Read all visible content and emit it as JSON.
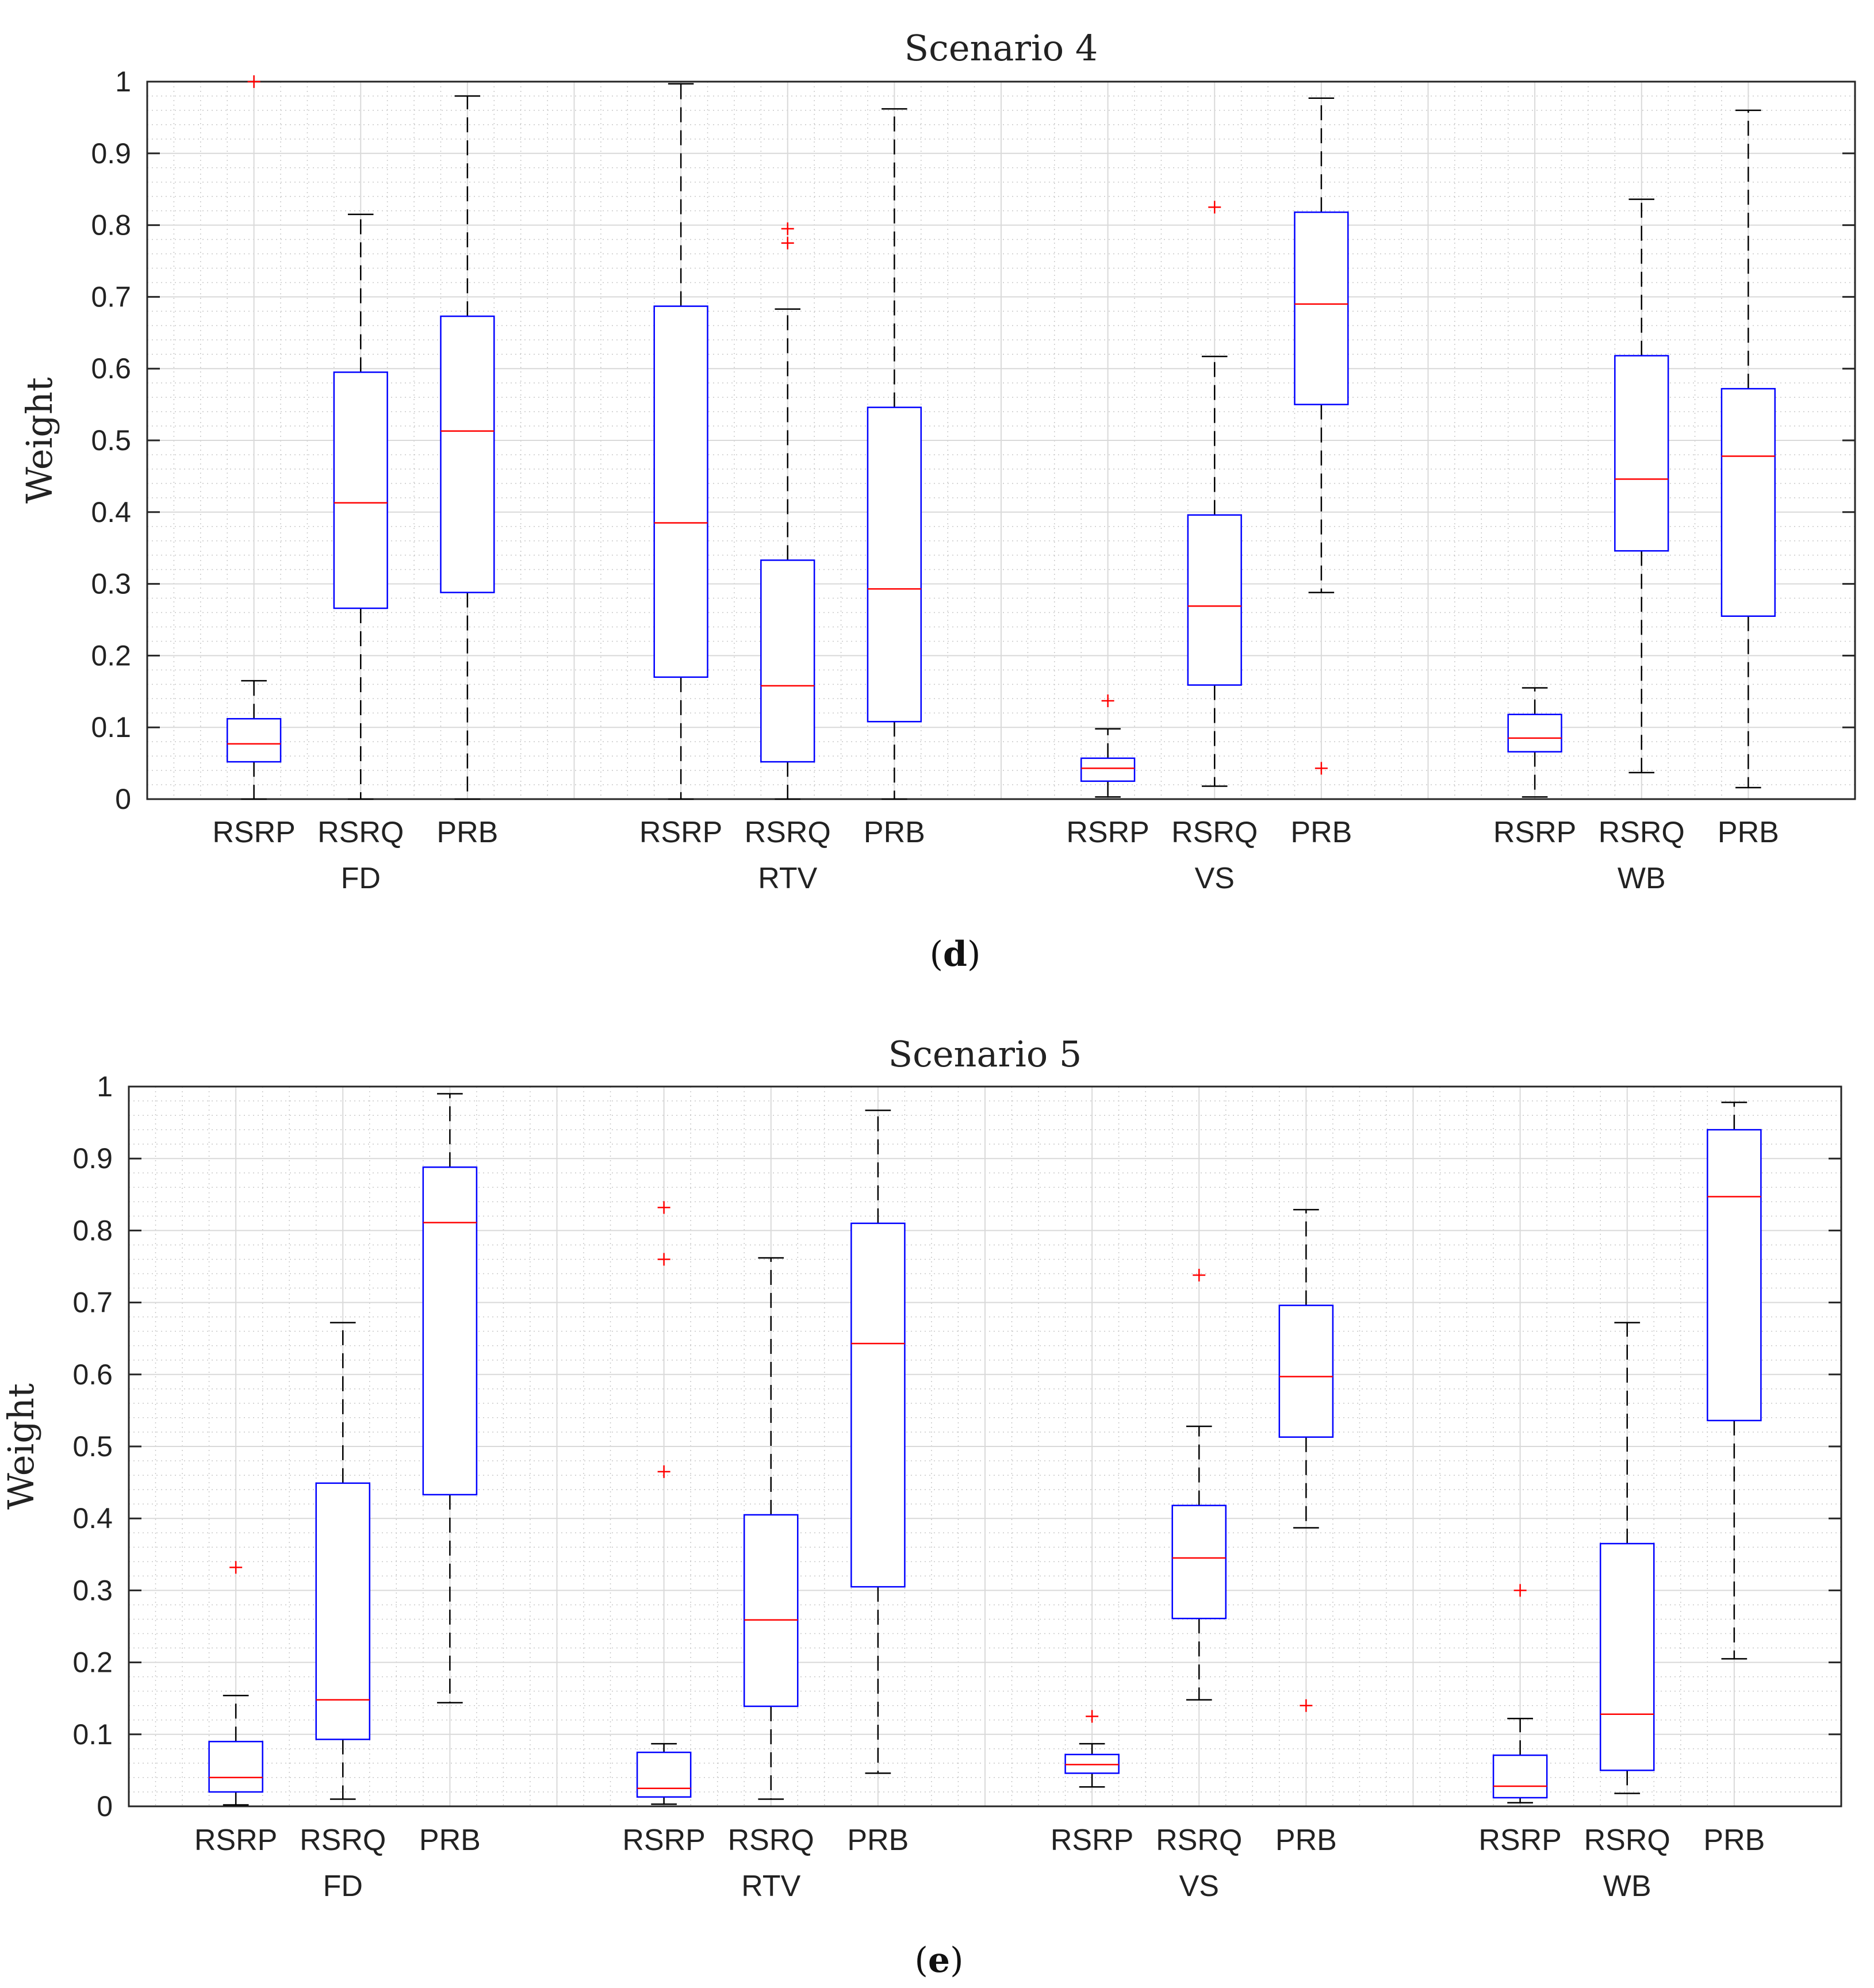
{
  "chart_data": [
    {
      "type": "boxplot",
      "title": "Scenario 4",
      "ylabel": "Weight",
      "ylim": [
        0,
        1
      ],
      "yticks": [
        "0",
        "0.1",
        "0.2",
        "0.3",
        "0.4",
        "0.5",
        "0.6",
        "0.7",
        "0.8",
        "0.9",
        "1"
      ],
      "grid": true,
      "caption": {
        "open": "(",
        "letter": "d",
        "close": ")"
      },
      "groups": [
        {
          "name": "FD",
          "boxes": [
            {
              "label": "RSRP",
              "min": 0.0,
              "q1": 0.052,
              "median": 0.077,
              "q3": 0.112,
              "max": 0.165,
              "outliers": [
                1.0
              ]
            },
            {
              "label": "RSRQ",
              "min": 0.0,
              "q1": 0.266,
              "median": 0.413,
              "q3": 0.595,
              "max": 0.815,
              "outliers": []
            },
            {
              "label": "PRB",
              "min": 0.0,
              "q1": 0.288,
              "median": 0.513,
              "q3": 0.673,
              "max": 0.98,
              "outliers": []
            }
          ]
        },
        {
          "name": "RTV",
          "boxes": [
            {
              "label": "RSRP",
              "min": 0.0,
              "q1": 0.17,
              "median": 0.385,
              "q3": 0.687,
              "max": 0.997,
              "outliers": []
            },
            {
              "label": "RSRQ",
              "min": 0.0,
              "q1": 0.052,
              "median": 0.158,
              "q3": 0.333,
              "max": 0.683,
              "outliers": [
                0.775,
                0.795
              ]
            },
            {
              "label": "PRB",
              "min": 0.0,
              "q1": 0.108,
              "median": 0.293,
              "q3": 0.546,
              "max": 0.962,
              "outliers": []
            }
          ]
        },
        {
          "name": "VS",
          "boxes": [
            {
              "label": "RSRP",
              "min": 0.003,
              "q1": 0.025,
              "median": 0.043,
              "q3": 0.057,
              "max": 0.098,
              "outliers": [
                0.137
              ]
            },
            {
              "label": "RSRQ",
              "min": 0.018,
              "q1": 0.159,
              "median": 0.269,
              "q3": 0.396,
              "max": 0.617,
              "outliers": [
                0.825
              ]
            },
            {
              "label": "PRB",
              "min": 0.288,
              "q1": 0.55,
              "median": 0.69,
              "q3": 0.818,
              "max": 0.977,
              "outliers": [
                0.043
              ]
            }
          ]
        },
        {
          "name": "WB",
          "boxes": [
            {
              "label": "RSRP",
              "min": 0.003,
              "q1": 0.066,
              "median": 0.085,
              "q3": 0.118,
              "max": 0.155,
              "outliers": []
            },
            {
              "label": "RSRQ",
              "min": 0.037,
              "q1": 0.346,
              "median": 0.446,
              "q3": 0.618,
              "max": 0.836,
              "outliers": []
            },
            {
              "label": "PRB",
              "min": 0.016,
              "q1": 0.255,
              "median": 0.478,
              "q3": 0.572,
              "max": 0.96,
              "outliers": []
            }
          ]
        }
      ]
    },
    {
      "type": "boxplot",
      "title": "Scenario 5",
      "ylabel": "Weight",
      "ylim": [
        0,
        1
      ],
      "yticks": [
        "0",
        "0.1",
        "0.2",
        "0.3",
        "0.4",
        "0.5",
        "0.6",
        "0.7",
        "0.8",
        "0.9",
        "1"
      ],
      "grid": true,
      "caption": {
        "open": "(",
        "letter": "e",
        "close": ")"
      },
      "groups": [
        {
          "name": "FD",
          "boxes": [
            {
              "label": "RSRP",
              "min": 0.002,
              "q1": 0.02,
              "median": 0.04,
              "q3": 0.09,
              "max": 0.154,
              "outliers": [
                0.332
              ]
            },
            {
              "label": "RSRQ",
              "min": 0.01,
              "q1": 0.093,
              "median": 0.148,
              "q3": 0.449,
              "max": 0.672,
              "outliers": []
            },
            {
              "label": "PRB",
              "min": 0.144,
              "q1": 0.433,
              "median": 0.811,
              "q3": 0.888,
              "max": 0.99,
              "outliers": []
            }
          ]
        },
        {
          "name": "RTV",
          "boxes": [
            {
              "label": "RSRP",
              "min": 0.003,
              "q1": 0.013,
              "median": 0.025,
              "q3": 0.075,
              "max": 0.087,
              "outliers": [
                0.465,
                0.76,
                0.832
              ]
            },
            {
              "label": "RSRQ",
              "min": 0.01,
              "q1": 0.139,
              "median": 0.259,
              "q3": 0.405,
              "max": 0.762,
              "outliers": []
            },
            {
              "label": "PRB",
              "min": 0.046,
              "q1": 0.305,
              "median": 0.643,
              "q3": 0.81,
              "max": 0.967,
              "outliers": []
            }
          ]
        },
        {
          "name": "VS",
          "boxes": [
            {
              "label": "RSRP",
              "min": 0.027,
              "q1": 0.046,
              "median": 0.058,
              "q3": 0.072,
              "max": 0.087,
              "outliers": [
                0.125
              ]
            },
            {
              "label": "RSRQ",
              "min": 0.148,
              "q1": 0.261,
              "median": 0.345,
              "q3": 0.418,
              "max": 0.528,
              "outliers": [
                0.738
              ]
            },
            {
              "label": "PRB",
              "min": 0.387,
              "q1": 0.513,
              "median": 0.597,
              "q3": 0.696,
              "max": 0.829,
              "outliers": [
                0.14
              ]
            }
          ]
        },
        {
          "name": "WB",
          "boxes": [
            {
              "label": "RSRP",
              "min": 0.005,
              "q1": 0.012,
              "median": 0.028,
              "q3": 0.071,
              "max": 0.122,
              "outliers": [
                0.3
              ]
            },
            {
              "label": "RSRQ",
              "min": 0.018,
              "q1": 0.05,
              "median": 0.128,
              "q3": 0.365,
              "max": 0.672,
              "outliers": []
            },
            {
              "label": "PRB",
              "min": 0.205,
              "q1": 0.536,
              "median": 0.847,
              "q3": 0.94,
              "max": 0.978,
              "outliers": []
            }
          ]
        }
      ]
    }
  ],
  "colors": {
    "box": "#0000ff",
    "median": "#ff0000",
    "outlier": "#ff0000",
    "whisker": "#000000",
    "grid": "#d9d9d9",
    "axis": "#262626"
  }
}
